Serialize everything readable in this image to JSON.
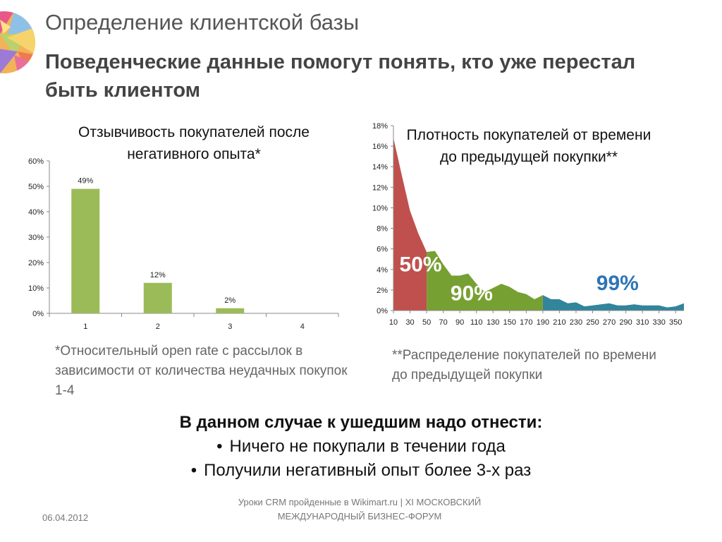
{
  "title": "Определение клиентской базы",
  "subtitle": "Поведенческие данные помогут понять, кто уже перестал быть клиентом",
  "chart_data": [
    {
      "type": "bar",
      "title": "Отзывчивость покупателей после негативного опыта*",
      "categories": [
        "1",
        "2",
        "3",
        "4"
      ],
      "values": [
        49,
        12,
        2,
        0
      ],
      "data_labels": [
        "49%",
        "12%",
        "2%",
        ""
      ],
      "y_ticks": [
        "0%",
        "10%",
        "20%",
        "30%",
        "40%",
        "50%",
        "60%"
      ],
      "ylim": [
        0,
        60
      ],
      "xlabel": "",
      "ylabel": "",
      "grid": false,
      "bar_color": "#9bbb59"
    },
    {
      "type": "area",
      "title": "Плотность покупателей от времени до предыдущей покупки**",
      "x": [
        10,
        20,
        30,
        40,
        50,
        60,
        70,
        80,
        90,
        100,
        110,
        120,
        130,
        140,
        150,
        160,
        170,
        180,
        190,
        200,
        210,
        220,
        230,
        240,
        250,
        260,
        270,
        280,
        290,
        300,
        310,
        320,
        330,
        340,
        350,
        360
      ],
      "y": [
        16.8,
        13.2,
        9.7,
        7.5,
        5.7,
        5.8,
        4.5,
        3.4,
        3.4,
        3.6,
        2.6,
        1.8,
        2.2,
        2.6,
        2.3,
        1.8,
        1.6,
        1.1,
        1.5,
        1.1,
        1.1,
        0.7,
        0.8,
        0.4,
        0.5,
        0.6,
        0.7,
        0.5,
        0.5,
        0.6,
        0.5,
        0.5,
        0.5,
        0.3,
        0.4,
        0.7
      ],
      "x_ticks": [
        "10",
        "30",
        "50",
        "70",
        "90",
        "110",
        "130",
        "150",
        "170",
        "190",
        "210",
        "230",
        "250",
        "270",
        "290",
        "310",
        "330",
        "350"
      ],
      "y_ticks": [
        "0%",
        "2%",
        "4%",
        "6%",
        "8%",
        "10%",
        "12%",
        "14%",
        "16%",
        "18%"
      ],
      "ylim": [
        0,
        18
      ],
      "segments": [
        {
          "from": 10,
          "to": 50,
          "color": "#c0504d",
          "label": "50%",
          "label_color": "#ffffff"
        },
        {
          "from": 50,
          "to": 190,
          "color": "#77a033",
          "label": "90%",
          "label_color": "#ffffff"
        },
        {
          "from": 190,
          "to": 360,
          "color": "#31859c",
          "label": "99%",
          "label_color": "#2e75b6"
        }
      ],
      "grid": false
    }
  ],
  "notes": {
    "left": "*Относительный open rate с рассылок в зависимости от количества неудачных покупок 1-4",
    "right": "**Распределение покупателей по времени до предыдущей покупки"
  },
  "conclusion": {
    "heading": "В данном случае к ушедшим надо отнести:",
    "bullet_symbol": "•",
    "items": [
      "Ничего не покупали в течении года",
      "Получили негативный опыт более 3-х раз"
    ]
  },
  "footer": {
    "date": "06.04.2012",
    "text": "Уроки CRM пройденные в Wikimart.ru | XI МОСКОВСКИЙ МЕЖДУНАРОДНЫЙ БИЗНЕС-ФОРУМ"
  },
  "colors": {
    "title": "#555555",
    "subtitle": "#444444",
    "notes": "#666666"
  }
}
